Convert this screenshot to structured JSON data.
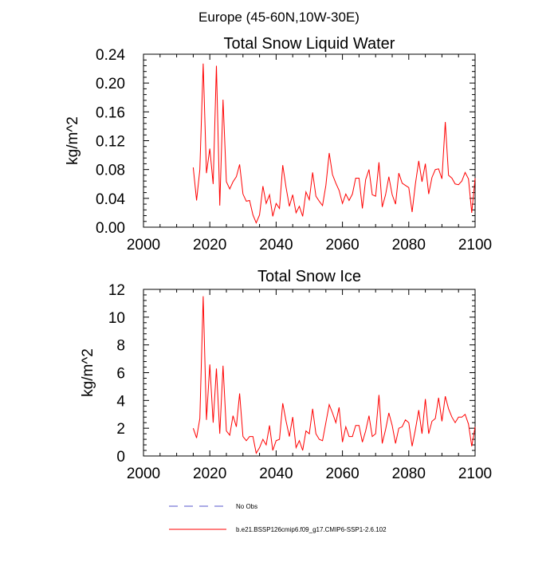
{
  "figure": {
    "suptitle": "Europe (45-60N,10W-30E)",
    "line_color": "#ff0000",
    "legend_obs_color": "#5555cc"
  },
  "legend": {
    "obs_label": "No Obs",
    "model_label": "b.e21.BSSP126cmip6.f09_g17.CMIP6-SSP1-2.6.102"
  },
  "chart_data": [
    {
      "type": "line",
      "title": "Total Snow Liquid Water",
      "xlabel": "",
      "ylabel": "kg/m^2",
      "xlim": [
        2000,
        2100
      ],
      "ylim": [
        0,
        0.24
      ],
      "xticks": [
        "2000",
        "2020",
        "2040",
        "2060",
        "2080",
        "2100"
      ],
      "yticks": [
        "0.00",
        "0.04",
        "0.08",
        "0.12",
        "0.16",
        "0.20",
        "0.24"
      ],
      "x_start": 2015,
      "series": [
        {
          "name": "b.e21.BSSP126cmip6.f09_g17.CMIP6-SSP1-2.6.102",
          "color": "#ff0000",
          "values": [
            0.083,
            0.037,
            0.08,
            0.227,
            0.075,
            0.109,
            0.06,
            0.224,
            0.03,
            0.177,
            0.063,
            0.053,
            0.063,
            0.07,
            0.087,
            0.046,
            0.036,
            0.037,
            0.017,
            0.006,
            0.017,
            0.057,
            0.033,
            0.045,
            0.015,
            0.033,
            0.026,
            0.086,
            0.055,
            0.029,
            0.045,
            0.02,
            0.029,
            0.015,
            0.049,
            0.038,
            0.076,
            0.043,
            0.036,
            0.03,
            0.058,
            0.103,
            0.073,
            0.061,
            0.051,
            0.033,
            0.046,
            0.037,
            0.046,
            0.068,
            0.068,
            0.026,
            0.066,
            0.08,
            0.045,
            0.043,
            0.09,
            0.028,
            0.045,
            0.07,
            0.045,
            0.032,
            0.075,
            0.061,
            0.058,
            0.055,
            0.021,
            0.06,
            0.092,
            0.063,
            0.088,
            0.046,
            0.069,
            0.08,
            0.081,
            0.067,
            0.146,
            0.072,
            0.068,
            0.06,
            0.059,
            0.064,
            0.076,
            0.067,
            0.02,
            0.068
          ]
        }
      ]
    },
    {
      "type": "line",
      "title": "Total Snow Ice",
      "xlabel": "",
      "ylabel": "kg/m^2",
      "xlim": [
        2000,
        2100
      ],
      "ylim": [
        0,
        12
      ],
      "xticks": [
        "2000",
        "2020",
        "2040",
        "2060",
        "2080",
        "2100"
      ],
      "yticks": [
        "0",
        "2",
        "4",
        "6",
        "8",
        "10",
        "12"
      ],
      "x_start": 2015,
      "series": [
        {
          "name": "b.e21.BSSP126cmip6.f09_g17.CMIP6-SSP1-2.6.102",
          "color": "#ff0000",
          "values": [
            2.0,
            1.3,
            2.7,
            11.5,
            2.6,
            6.6,
            2.4,
            6.3,
            1.6,
            6.5,
            1.8,
            1.5,
            2.9,
            2.1,
            4.5,
            1.4,
            1.1,
            1.4,
            1.4,
            0.2,
            0.6,
            1.2,
            0.8,
            2.2,
            0.4,
            1.1,
            1.2,
            3.8,
            2.5,
            1.4,
            2.8,
            0.6,
            1.1,
            0.4,
            1.8,
            1.6,
            3.4,
            1.6,
            1.2,
            1.1,
            2.4,
            3.7,
            3.1,
            2.4,
            3.5,
            1.0,
            2.1,
            1.4,
            1.4,
            2.2,
            2.2,
            1.0,
            1.8,
            2.9,
            1.4,
            1.6,
            4.4,
            0.9,
            1.9,
            3.1,
            2.2,
            0.9,
            2.0,
            2.1,
            2.6,
            2.4,
            0.7,
            1.9,
            3.3,
            1.6,
            4.1,
            1.6,
            2.5,
            2.7,
            4.2,
            2.5,
            4.3,
            3.4,
            2.8,
            2.4,
            2.8,
            2.8,
            3.0,
            2.3,
            0.7,
            2.1
          ]
        }
      ]
    }
  ]
}
